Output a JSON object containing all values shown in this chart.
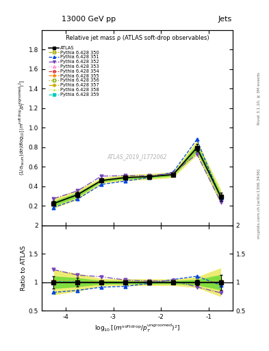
{
  "title_top": "13000 GeV pp",
  "title_right": "Jets",
  "main_title": "Relative jet mass ρ (ATLAS soft-drop observables)",
  "watermark": "ATLAS_2019_I1772062",
  "right_label": "Rivet 3.1.10, ≥ 3M events",
  "right_label2": "mcplots.cern.ch [arXiv:1306.3436]",
  "xvalues": [
    -4.25,
    -3.75,
    -3.25,
    -2.75,
    -2.25,
    -1.75,
    -1.25,
    -0.75
  ],
  "xlim": [
    -4.5,
    -0.5
  ],
  "yticks_main": [
    0.2,
    0.4,
    0.6,
    0.8,
    1.0,
    1.2,
    1.4,
    1.6,
    1.8
  ],
  "xticks": [
    -4.0,
    -3.0,
    -2.0,
    -1.0
  ],
  "atlas_values": [
    0.225,
    0.315,
    0.46,
    0.49,
    0.5,
    0.52,
    0.795,
    0.295
  ],
  "atlas_err_lo": [
    0.025,
    0.025,
    0.015,
    0.015,
    0.015,
    0.015,
    0.04,
    0.04
  ],
  "atlas_err_hi": [
    0.025,
    0.025,
    0.015,
    0.015,
    0.015,
    0.015,
    0.04,
    0.04
  ],
  "series": [
    {
      "label": "ATLAS",
      "color": "#000000",
      "marker": "s",
      "markerfacecolor": "#000000",
      "markersize": 4,
      "linestyle": "-",
      "linewidth": 1.2,
      "values": [
        0.225,
        0.315,
        0.46,
        0.49,
        0.5,
        0.52,
        0.795,
        0.295
      ],
      "is_atlas": true
    },
    {
      "label": "Pythia 6.428 350",
      "color": "#aaaa00",
      "marker": "s",
      "markerfacecolor": "none",
      "markersize": 3.5,
      "linestyle": "--",
      "linewidth": 0.9,
      "values": [
        0.225,
        0.315,
        0.46,
        0.49,
        0.5,
        0.52,
        0.79,
        0.298
      ],
      "is_atlas": false
    },
    {
      "label": "Pythia 6.428 351",
      "color": "#0044dd",
      "marker": "^",
      "markerfacecolor": "#0044dd",
      "markersize": 3.5,
      "linestyle": "--",
      "linewidth": 0.9,
      "values": [
        0.185,
        0.27,
        0.42,
        0.455,
        0.49,
        0.545,
        0.88,
        0.28
      ],
      "is_atlas": false
    },
    {
      "label": "Pythia 6.428 352",
      "color": "#7744bb",
      "marker": "v",
      "markerfacecolor": "#7744bb",
      "markersize": 3.5,
      "linestyle": "-.",
      "linewidth": 0.9,
      "values": [
        0.275,
        0.355,
        0.505,
        0.51,
        0.51,
        0.535,
        0.73,
        0.24
      ],
      "is_atlas": false
    },
    {
      "label": "Pythia 6.428 353",
      "color": "#ff88cc",
      "marker": "^",
      "markerfacecolor": "none",
      "markersize": 3.5,
      "linestyle": ":",
      "linewidth": 0.9,
      "values": [
        0.228,
        0.318,
        0.462,
        0.492,
        0.502,
        0.522,
        0.792,
        0.298
      ],
      "is_atlas": false
    },
    {
      "label": "Pythia 6.428 354",
      "color": "#dd3333",
      "marker": "o",
      "markerfacecolor": "none",
      "markersize": 3.5,
      "linestyle": "--",
      "linewidth": 0.9,
      "values": [
        0.228,
        0.318,
        0.46,
        0.49,
        0.5,
        0.52,
        0.785,
        0.298
      ],
      "is_atlas": false
    },
    {
      "label": "Pythia 6.428 355",
      "color": "#ff8800",
      "marker": "*",
      "markerfacecolor": "#ff8800",
      "markersize": 4.5,
      "linestyle": "--",
      "linewidth": 0.9,
      "values": [
        0.23,
        0.32,
        0.462,
        0.492,
        0.502,
        0.522,
        0.792,
        0.3
      ],
      "is_atlas": false
    },
    {
      "label": "Pythia 6.428 356",
      "color": "#88aa00",
      "marker": "s",
      "markerfacecolor": "none",
      "markersize": 3.5,
      "linestyle": ":",
      "linewidth": 0.9,
      "values": [
        0.228,
        0.318,
        0.46,
        0.49,
        0.5,
        0.52,
        0.79,
        0.296
      ],
      "is_atlas": false
    },
    {
      "label": "Pythia 6.428 357",
      "color": "#ccaa00",
      "marker": "D",
      "markerfacecolor": "#ccaa00",
      "markersize": 3.0,
      "linestyle": "-.",
      "linewidth": 0.9,
      "values": [
        0.228,
        0.318,
        0.46,
        0.491,
        0.501,
        0.521,
        0.791,
        0.298
      ],
      "is_atlas": false
    },
    {
      "label": "Pythia 6.428 358",
      "color": "#ccee44",
      "marker": ".",
      "markerfacecolor": "#ccee44",
      "markersize": 3.5,
      "linestyle": ":",
      "linewidth": 0.9,
      "values": [
        0.228,
        0.318,
        0.46,
        0.49,
        0.5,
        0.52,
        0.79,
        0.297
      ],
      "is_atlas": false
    },
    {
      "label": "Pythia 6.428 359",
      "color": "#00ccbb",
      "marker": "s",
      "markerfacecolor": "#00ccbb",
      "markersize": 3.5,
      "linestyle": "--",
      "linewidth": 0.9,
      "values": [
        0.228,
        0.318,
        0.46,
        0.49,
        0.5,
        0.52,
        0.793,
        0.297
      ],
      "is_atlas": false
    }
  ],
  "atlas_band_inner_color": "#00cc00",
  "atlas_band_inner_alpha": 0.45,
  "atlas_band_outer_color": "#dddd00",
  "atlas_band_outer_alpha": 0.55,
  "atlas_band_lo": [
    0.2,
    0.29,
    0.445,
    0.475,
    0.485,
    0.505,
    0.755,
    0.255
  ],
  "atlas_band_hi": [
    0.25,
    0.34,
    0.475,
    0.505,
    0.515,
    0.535,
    0.835,
    0.335
  ],
  "atlas_band_outer_lo": [
    0.175,
    0.265,
    0.43,
    0.46,
    0.47,
    0.49,
    0.72,
    0.22
  ],
  "atlas_band_outer_hi": [
    0.275,
    0.365,
    0.49,
    0.52,
    0.53,
    0.55,
    0.87,
    0.37
  ]
}
